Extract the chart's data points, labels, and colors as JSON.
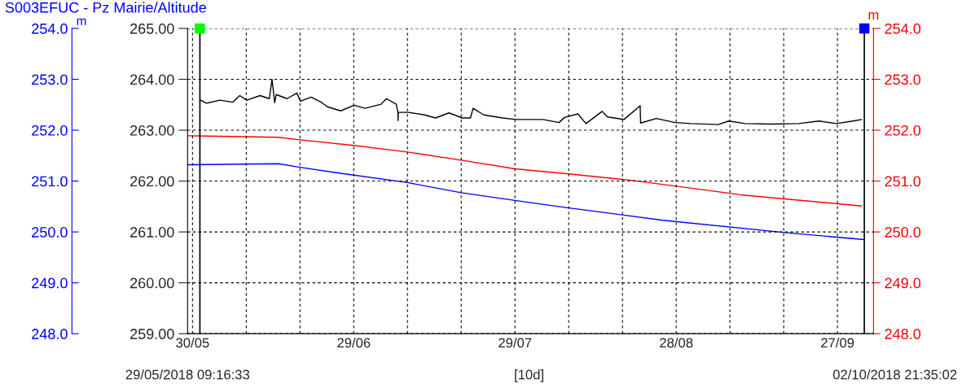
{
  "chart_data": {
    "type": "line",
    "title": "S003EFUC - Pz Mairie/Altitude",
    "y2label": "m",
    "y3label": "m",
    "xlim": [
      "2018-05-29T02:00",
      "2018-10-03T17:00"
    ],
    "xticks": [
      {
        "value": "2018-05-30",
        "label": "30/05"
      },
      {
        "value": "2018-06-09",
        "label": null
      },
      {
        "value": "2018-06-19",
        "label": null
      },
      {
        "value": "2018-06-29",
        "label": "29/06"
      },
      {
        "value": "2018-07-09",
        "label": null
      },
      {
        "value": "2018-07-19",
        "label": null
      },
      {
        "value": "2018-07-29",
        "label": "29/07"
      },
      {
        "value": "2018-08-08",
        "label": null
      },
      {
        "value": "2018-08-18",
        "label": null
      },
      {
        "value": "2018-08-28",
        "label": "28/08"
      },
      {
        "value": "2018-09-07",
        "label": null
      },
      {
        "value": "2018-09-17",
        "label": null
      },
      {
        "value": "2018-09-27",
        "label": "27/09"
      }
    ],
    "ylim": [
      259,
      265
    ],
    "yticks": [
      {
        "value": 259,
        "label": "259.00"
      },
      {
        "value": 260,
        "label": "260.00"
      },
      {
        "value": 261,
        "label": "261.00"
      },
      {
        "value": 262,
        "label": "262.00"
      },
      {
        "value": 263,
        "label": "263.00"
      },
      {
        "value": 264,
        "label": "264.00"
      },
      {
        "value": 265,
        "label": "265.00"
      }
    ],
    "y2lim": [
      248,
      254
    ],
    "y2ticks": [
      {
        "value": 248,
        "label": "248.0"
      },
      {
        "value": 249,
        "label": "249.0"
      },
      {
        "value": 250,
        "label": "250.0"
      },
      {
        "value": 251,
        "label": "251.0"
      },
      {
        "value": 252,
        "label": "252.0"
      },
      {
        "value": 253,
        "label": "253.0"
      },
      {
        "value": 254,
        "label": "254.0"
      }
    ],
    "y3lim": [
      248,
      254
    ],
    "y3ticks": [
      {
        "value": 248,
        "label": "248.0"
      },
      {
        "value": 249,
        "label": "249.0"
      },
      {
        "value": 250,
        "label": "250.0"
      },
      {
        "value": 251,
        "label": "251.0"
      },
      {
        "value": 252,
        "label": "252.0"
      },
      {
        "value": 253,
        "label": "253.0"
      },
      {
        "value": 254,
        "label": "254.0"
      }
    ],
    "grid": true,
    "series": [
      {
        "color": "#000000",
        "x": [
          "2018-05-31T13:00",
          "2018-06-01T14:00",
          "2018-06-04T02:00",
          "2018-06-06T12:00",
          "2018-06-07T19:00",
          "2018-06-09T02:00",
          "2018-06-11T14:00",
          "2018-06-13T07:00",
          "2018-06-13T19:00",
          "2018-06-14T07:00",
          "2018-06-14T14:00",
          "2018-06-16T14:00",
          "2018-06-18T10:00",
          "2018-06-19T02:00",
          "2018-06-21T02:00",
          "2018-06-23T02:00",
          "2018-06-24T02:00",
          "2018-06-26T14:00",
          "2018-06-29T02:00",
          "2018-07-01T02:00",
          "2018-07-04T02:00",
          "2018-07-05T02:00",
          "2018-07-06T22:00",
          "2018-07-07T05:00",
          "2018-07-07T06:00",
          "2018-07-07T07:00",
          "2018-07-09T05:00",
          "2018-07-12T05:00",
          "2018-07-14T05:00",
          "2018-07-16T17:00",
          "2018-07-19T05:00",
          "2018-07-20T17:00",
          "2018-07-21T05:00",
          "2018-07-23T05:00",
          "2018-07-26T17:00",
          "2018-07-29T05:00",
          "2018-07-31T17:00",
          "2018-08-03T05:00",
          "2018-08-06T05:00",
          "2018-08-07T05:00",
          "2018-08-09T17:00",
          "2018-08-11T05:00",
          "2018-08-14T05:00",
          "2018-08-15T05:00",
          "2018-08-18T07:00",
          "2018-08-21T07:00",
          "2018-08-21T09:00",
          "2018-08-24T07:00",
          "2018-08-27T19:00",
          "2018-08-30T19:00",
          "2018-09-04T19:00",
          "2018-09-06T19:00",
          "2018-09-09T19:00",
          "2018-09-14T19:00",
          "2018-09-19T19:00",
          "2018-09-23T14:00",
          "2018-09-26T19:00",
          "2018-09-29T22:00",
          "2018-10-01T12:00"
        ],
        "values": [
          263.59,
          263.53,
          263.59,
          263.55,
          263.68,
          263.59,
          263.68,
          263.62,
          264.0,
          263.54,
          263.7,
          263.62,
          263.73,
          263.57,
          263.65,
          263.54,
          263.46,
          263.38,
          263.49,
          263.43,
          263.51,
          263.62,
          263.51,
          263.35,
          263.19,
          263.35,
          263.35,
          263.3,
          263.24,
          263.34,
          263.24,
          263.24,
          263.43,
          263.3,
          263.24,
          263.21,
          263.21,
          263.21,
          263.15,
          263.25,
          263.32,
          263.13,
          263.37,
          263.26,
          263.21,
          263.48,
          263.14,
          263.23,
          263.15,
          263.13,
          263.11,
          263.18,
          263.13,
          263.12,
          263.13,
          263.18,
          263.13,
          263.18,
          263.21
        ]
      },
      {
        "color": "#ff0000",
        "axis": "y2",
        "x": [
          "2018-05-29T02:00",
          "2018-06-15T00:00",
          "2018-06-19T00:00",
          "2018-06-29T00:00",
          "2018-07-09T00:00",
          "2018-07-19T00:00",
          "2018-07-29T00:00",
          "2018-08-08T00:00",
          "2018-08-20T00:00",
          "2018-09-09T00:00",
          "2018-10-01T12:00"
        ],
        "values": [
          251.89,
          251.86,
          251.81,
          251.7,
          251.57,
          251.41,
          251.24,
          251.14,
          251.01,
          250.73,
          250.51
        ]
      },
      {
        "color": "#0000ff",
        "axis": "y3",
        "x": [
          "2018-05-29T02:00",
          "2018-06-15T00:00",
          "2018-06-19T00:00",
          "2018-06-26T00:00",
          "2018-07-09T00:00",
          "2018-07-19T00:00",
          "2018-07-29T00:00",
          "2018-08-07T12:00",
          "2018-08-25T12:00",
          "2018-09-18T00:00",
          "2018-10-02T00:00"
        ],
        "values": [
          251.32,
          251.34,
          251.27,
          251.16,
          250.97,
          250.77,
          250.62,
          250.48,
          250.23,
          249.98,
          249.85
        ]
      }
    ],
    "ref_lines": [
      {
        "axis": "x",
        "value": "2018-05-31T09:00"
      },
      {
        "axis": "x",
        "value": "2018-10-02T00:00"
      }
    ],
    "annotations": [
      "29/05/2018 09:16:33",
      "[10d]",
      "02/10/2018 21:35:02"
    ]
  }
}
